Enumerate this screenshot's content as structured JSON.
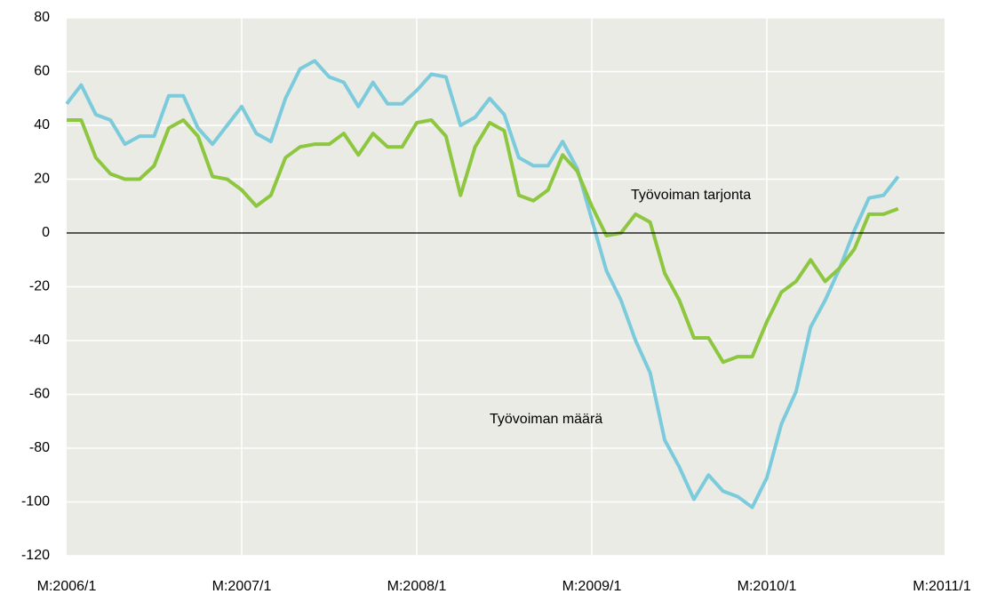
{
  "chart_data": {
    "type": "line",
    "categories": [
      "M:2006/1",
      null,
      null,
      null,
      null,
      null,
      null,
      null,
      null,
      null,
      null,
      null,
      "M:2007/1",
      null,
      null,
      null,
      null,
      null,
      null,
      null,
      null,
      null,
      null,
      null,
      "M:2008/1",
      null,
      null,
      null,
      null,
      null,
      null,
      null,
      null,
      null,
      null,
      null,
      "M:2009/1",
      null,
      null,
      null,
      null,
      null,
      null,
      null,
      null,
      null,
      null,
      null,
      "M:2010/1",
      null,
      null,
      null,
      null,
      null,
      null,
      null,
      null,
      null,
      null,
      null,
      "M:2011/1"
    ],
    "series": [
      {
        "name": "Työvoiman määrä",
        "color": "#7ccbdc",
        "values": [
          48,
          55,
          44,
          42,
          33,
          36,
          36,
          51,
          51,
          39,
          33,
          40,
          47,
          37,
          34,
          50,
          61,
          64,
          58,
          56,
          47,
          56,
          48,
          48,
          53,
          59,
          58,
          40,
          43,
          50,
          44,
          28,
          25,
          25,
          34,
          24,
          5,
          -14,
          -25,
          -40,
          -52,
          -77,
          -87,
          -99,
          -90,
          -96,
          -98,
          -102,
          -91,
          -71,
          -59,
          -35,
          -25,
          -13,
          1,
          13,
          14,
          21,
          null,
          null,
          null
        ]
      },
      {
        "name": "Työvoiman tarjonta",
        "color": "#8dc63f",
        "values": [
          42,
          42,
          28,
          22,
          20,
          20,
          25,
          39,
          42,
          36,
          21,
          20,
          16,
          10,
          14,
          28,
          32,
          33,
          33,
          37,
          29,
          37,
          32,
          32,
          41,
          42,
          36,
          14,
          32,
          41,
          38,
          14,
          12,
          16,
          29,
          23,
          10,
          -1,
          0,
          7,
          4,
          -15,
          -25,
          -39,
          -39,
          -48,
          -46,
          -46,
          -33,
          -22,
          -18,
          -10,
          -18,
          -13,
          -6,
          7,
          7,
          9,
          null,
          null,
          null
        ]
      }
    ],
    "ylim": [
      -120,
      80
    ],
    "yticks": [
      -120,
      -100,
      -80,
      -60,
      -40,
      -20,
      0,
      20,
      40,
      60,
      80
    ],
    "grid": true
  }
}
